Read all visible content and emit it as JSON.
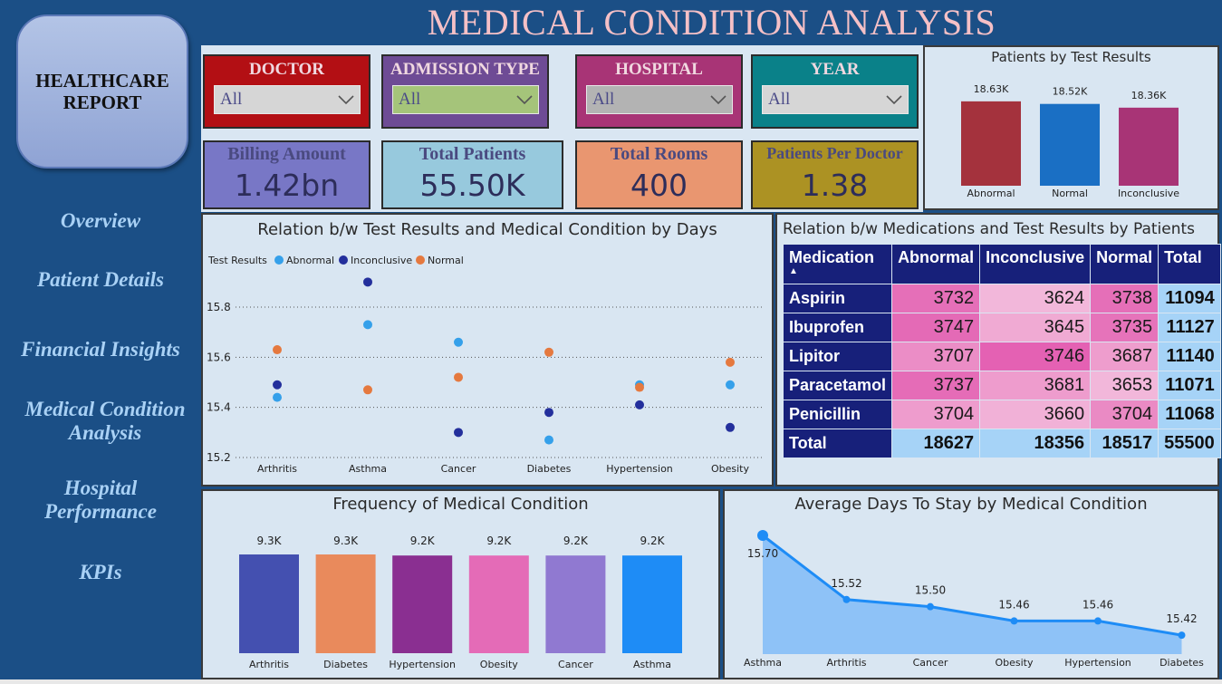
{
  "header": {
    "title": "MEDICAL CONDITION ANALYSIS"
  },
  "sidebar": {
    "logo_text_line1": "HEALTHCARE",
    "logo_text_line2": "REPORT",
    "items": [
      {
        "label": "Overview"
      },
      {
        "label": "Patient Details"
      },
      {
        "label": "Financial Insights"
      },
      {
        "label_line1": "Medical Condition",
        "label_line2": "Analysis"
      },
      {
        "label_line1": "Hospital",
        "label_line2": "Performance"
      },
      {
        "label": "KPIs"
      }
    ]
  },
  "filters": [
    {
      "title": "DOCTOR",
      "value": "All",
      "bg": "#b30f14",
      "select_bg": "#d6d6d6"
    },
    {
      "title": "ADMISSION TYPE",
      "value": "All",
      "bg": "#6e4b95",
      "select_bg": "#a5c47a"
    },
    {
      "title": "HOSPITAL",
      "value": "All",
      "bg": "#a83476",
      "select_bg": "#b3b3b3"
    },
    {
      "title": "YEAR",
      "value": "All",
      "bg": "#0a8189",
      "select_bg": "#d6d6d6"
    }
  ],
  "kpis": [
    {
      "title": "Billing Amount",
      "value": "1.42bn",
      "bg": "#7877c6"
    },
    {
      "title": "Total Patients",
      "value": "55.50K",
      "bg": "#97c9dd"
    },
    {
      "title": "Total Rooms",
      "value": "400",
      "bg": "#e99670"
    },
    {
      "title": "Patients Per Doctor",
      "value": "1.38",
      "bg": "#ac9223"
    }
  ],
  "test_results_panel": {
    "title": "Patients by Test Results",
    "chart_data": {
      "type": "bar",
      "categories": [
        "Abnormal",
        "Normal",
        "Inconclusive"
      ],
      "values": [
        18627,
        18517,
        18356
      ],
      "data_labels": [
        "18.63K",
        "18.52K",
        "18.36K"
      ],
      "colors": [
        "#a4323d",
        "#1a6fc4",
        "#a83476"
      ]
    }
  },
  "scatter_panel": {
    "title": "Relation b/w Test Results and Medical Condition by Days",
    "legend_title": "Test Results",
    "chart_data": {
      "type": "scatter",
      "categories": [
        "Arthritis",
        "Asthma",
        "Cancer",
        "Diabetes",
        "Hypertension",
        "Obesity"
      ],
      "ylim": [
        15.2,
        15.8
      ],
      "yticks": [
        "15.2",
        "15.4",
        "15.6",
        "15.8"
      ],
      "series": [
        {
          "name": "Abnormal",
          "color": "#35a0ea",
          "values": [
            15.44,
            15.73,
            15.66,
            15.27,
            15.49,
            15.49
          ]
        },
        {
          "name": "Inconclusive",
          "color": "#232f9c",
          "values": [
            15.49,
            15.9,
            15.3,
            15.38,
            15.41,
            15.32
          ]
        },
        {
          "name": "Normal",
          "color": "#e5793f",
          "values": [
            15.63,
            15.47,
            15.52,
            15.62,
            15.48,
            15.58
          ]
        }
      ]
    }
  },
  "medication_panel": {
    "title": "Relation b/w Medications and Test Results by Patients",
    "columns": [
      "Medication",
      "Abnormal",
      "Inconclusive",
      "Normal",
      "Total"
    ],
    "rows": [
      {
        "name": "Aspirin",
        "abnormal": "3732",
        "inconclusive": "3624",
        "normal": "3738",
        "total": "11094"
      },
      {
        "name": "Ibuprofen",
        "abnormal": "3747",
        "inconclusive": "3645",
        "normal": "3735",
        "total": "11127"
      },
      {
        "name": "Lipitor",
        "abnormal": "3707",
        "inconclusive": "3746",
        "normal": "3687",
        "total": "11140"
      },
      {
        "name": "Paracetamol",
        "abnormal": "3737",
        "inconclusive": "3681",
        "normal": "3653",
        "total": "11071"
      },
      {
        "name": "Penicillin",
        "abnormal": "3704",
        "inconclusive": "3660",
        "normal": "3704",
        "total": "11068"
      }
    ],
    "total_row": {
      "name": "Total",
      "abnormal": "18627",
      "inconclusive": "18356",
      "normal": "18517",
      "total": "55500"
    }
  },
  "frequency_panel": {
    "title": "Frequency of Medical Condition",
    "chart_data": {
      "type": "bar",
      "categories": [
        "Arthritis",
        "Diabetes",
        "Hypertension",
        "Obesity",
        "Cancer",
        "Asthma"
      ],
      "values": [
        9.3,
        9.3,
        9.2,
        9.2,
        9.2,
        9.2
      ],
      "data_labels": [
        "9.3K",
        "9.3K",
        "9.2K",
        "9.2K",
        "9.2K",
        "9.2K"
      ],
      "colors": [
        "#4450b0",
        "#e98a5c",
        "#8a2f91",
        "#e46bb7",
        "#9079d1",
        "#1e8cf6"
      ]
    }
  },
  "days_panel": {
    "title": "Average Days To Stay by Medical Condition",
    "chart_data": {
      "type": "area",
      "categories": [
        "Asthma",
        "Arthritis",
        "Cancer",
        "Obesity",
        "Hypertension",
        "Diabetes"
      ],
      "values": [
        15.7,
        15.52,
        15.5,
        15.46,
        15.46,
        15.42
      ],
      "data_labels": [
        "15.70",
        "15.52",
        "15.50",
        "15.46",
        "15.46",
        "15.42"
      ],
      "line_color": "#1e8cf6",
      "fill_color": "#8ec2f7"
    }
  }
}
